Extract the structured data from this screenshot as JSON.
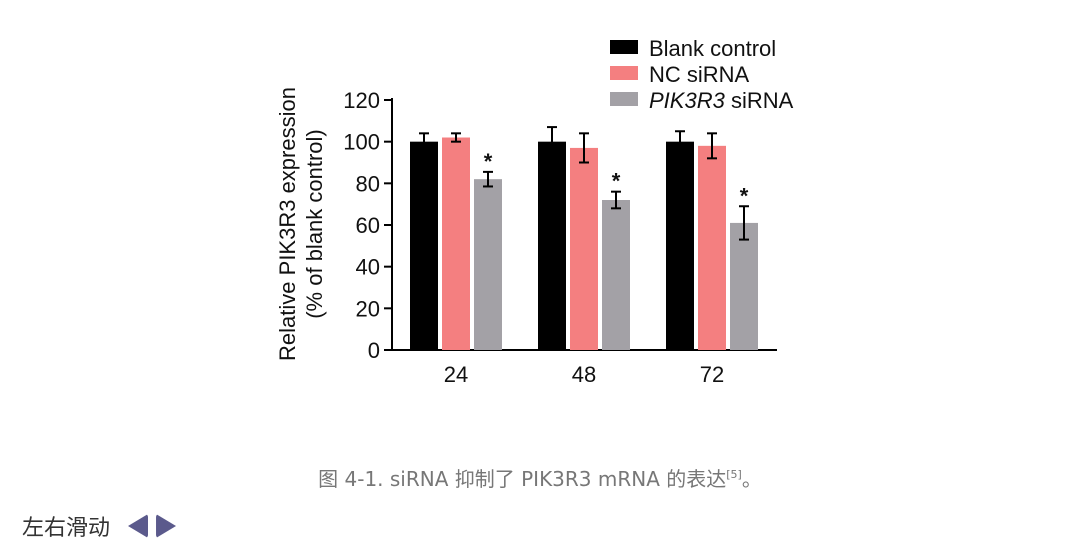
{
  "chart_data": {
    "type": "bar",
    "categories": [
      "24",
      "48",
      "72"
    ],
    "series": [
      {
        "name": "Blank control",
        "color": "#000000",
        "values": [
          100,
          100,
          100
        ],
        "errors": [
          4,
          7,
          5
        ]
      },
      {
        "name": "NC siRNA",
        "color": "#f47f80",
        "values": [
          102,
          97,
          98
        ],
        "errors": [
          2,
          7,
          6
        ]
      },
      {
        "name_italic": "PIK3R3",
        "name_rest": " siRNA",
        "color": "#a3a1a6",
        "values": [
          82,
          72,
          61
        ],
        "errors": [
          3.5,
          4,
          8
        ],
        "significance": [
          "*",
          "*",
          "*"
        ]
      }
    ],
    "ylabel_line1": "Relative PIK3R3 expression",
    "ylabel_line2": "(% of blank control)",
    "ylim": [
      0,
      120
    ],
    "yticks": [
      0,
      20,
      40,
      60,
      80,
      100,
      120
    ],
    "legend_position": "top-right"
  },
  "caption": {
    "text": "图 4-1. siRNA 抑制了 PIK3R3 mRNA 的表达",
    "ref": "[5]",
    "end": "。"
  },
  "swipe": {
    "label": "左右滑动"
  }
}
